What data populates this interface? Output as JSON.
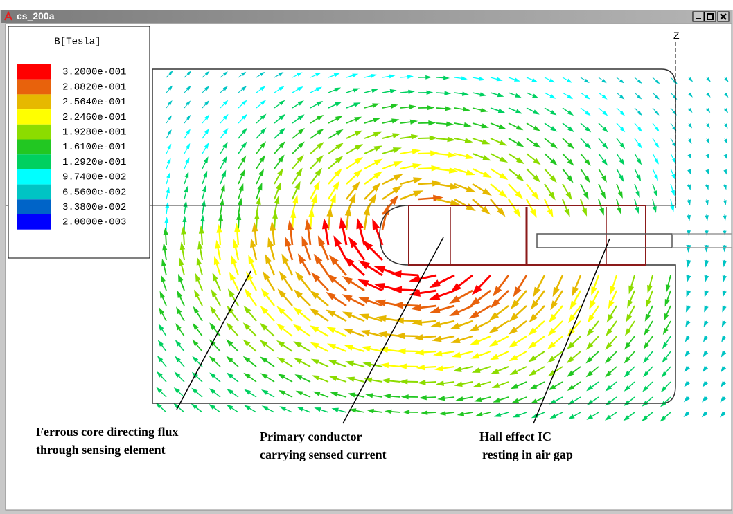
{
  "window": {
    "title": "cs_200a"
  },
  "axis_label": "Z",
  "legend": {
    "title": "B[Tesla]",
    "entries": [
      {
        "color": "#ff0000",
        "label": "3.2000e-001"
      },
      {
        "color": "#e8620c",
        "label": "2.8820e-001"
      },
      {
        "color": "#e6b800",
        "label": "2.5640e-001"
      },
      {
        "color": "#ffff00",
        "label": "2.2460e-001"
      },
      {
        "color": "#8cdc00",
        "label": "1.9280e-001"
      },
      {
        "color": "#22c722",
        "label": "1.6100e-001"
      },
      {
        "color": "#00d060",
        "label": "1.2920e-001"
      },
      {
        "color": "#00ffff",
        "label": "9.7400e-002"
      },
      {
        "color": "#00c4c4",
        "label": "6.5600e-002"
      },
      {
        "color": "#0064c8",
        "label": "3.3800e-002"
      },
      {
        "color": "#0000ff",
        "label": "2.0000e-003"
      }
    ]
  },
  "annotations": [
    {
      "lines": [
        "Ferrous core directing flux",
        "through sensing element"
      ]
    },
    {
      "lines": [
        "Primary conductor",
        "carrying sensed current"
      ]
    },
    {
      "lines": [
        "Hall effect IC",
        "resting in air gap"
      ]
    }
  ]
}
